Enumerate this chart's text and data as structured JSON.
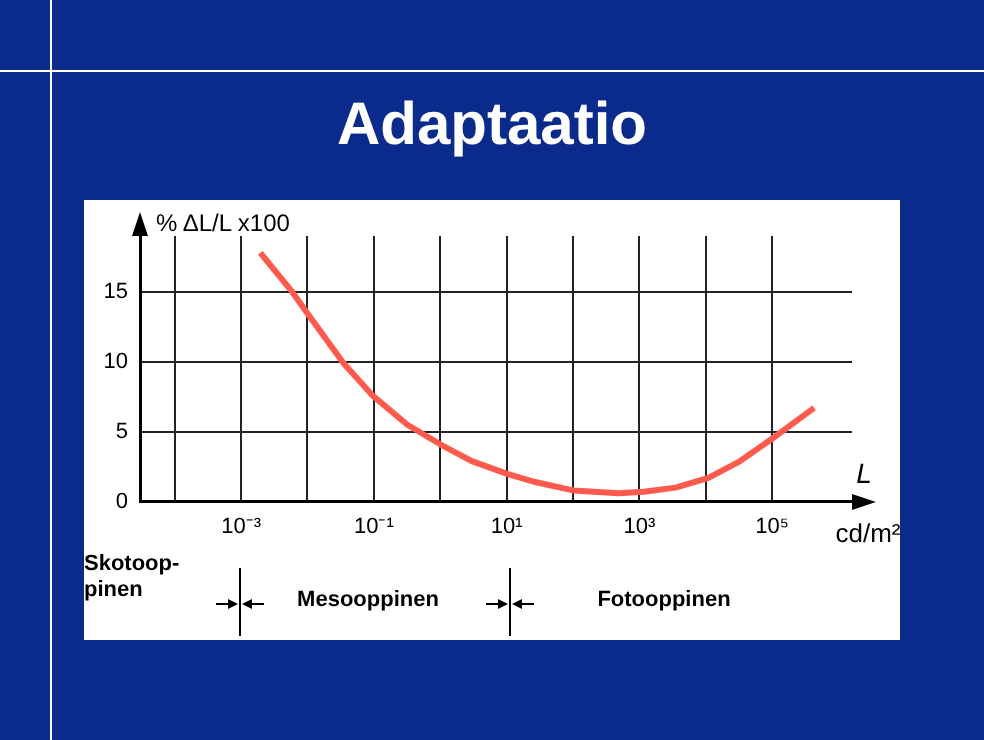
{
  "chart_data": {
    "type": "line",
    "title": "Adaptaatio",
    "xlabel": "L",
    "ylabel": "% ΔL/L x100",
    "annotations": [
      "cd/m²",
      "Skotoop-pinen",
      "Mesooppinen",
      "Fotooppinen"
    ],
    "log": "x",
    "grid": true,
    "legend": false,
    "marker": "none",
    "line_style": "solid",
    "xlim": [
      3e-05,
      1600000
    ],
    "ylim": [
      0,
      19
    ],
    "xticks": [
      {
        "value": 0.0001,
        "label": null
      },
      {
        "value": 0.001,
        "label": "10⁻³"
      },
      {
        "value": 0.01,
        "label": null
      },
      {
        "value": 0.1,
        "label": "10⁻¹"
      },
      {
        "value": 1,
        "label": null
      },
      {
        "value": 10,
        "label": "10¹"
      },
      {
        "value": 100,
        "label": null
      },
      {
        "value": 1000,
        "label": "10³"
      },
      {
        "value": 10000,
        "label": null
      },
      {
        "value": 100000,
        "label": "10⁵"
      }
    ],
    "yticks": [
      0,
      5,
      10,
      15
    ],
    "series": [
      {
        "color": "#ff5a4e",
        "x": [
          0.00195,
          0.0059,
          0.0102,
          0.035,
          0.095,
          0.32,
          1,
          3,
          10,
          27,
          100,
          490,
          1170,
          3500,
          11000,
          33000,
          100000,
          430000
        ],
        "values": [
          17.8,
          15,
          13.4,
          9.9,
          7.6,
          5.5,
          4.1,
          2.9,
          2,
          1.4,
          0.8,
          0.6,
          0.7,
          1,
          1.7,
          2.9,
          4.5,
          6.7
        ]
      }
    ]
  }
}
